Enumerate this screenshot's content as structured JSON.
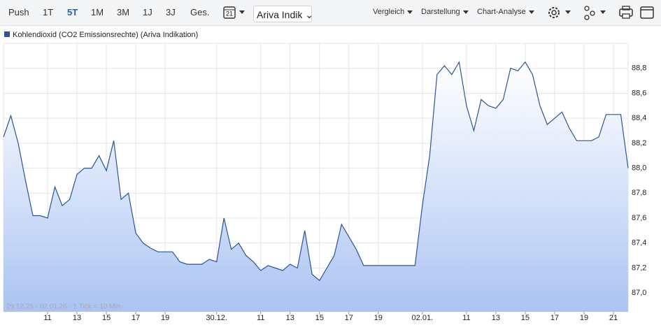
{
  "toolbar": {
    "periods": [
      "Push",
      "1T",
      "5T",
      "1M",
      "3M",
      "1J",
      "3J",
      "Ges."
    ],
    "selected_period": 2,
    "calendar_day": "21",
    "source_select": "Ariva Indik",
    "menus": [
      "Vergleich",
      "Darstellung",
      "Chart-Analyse"
    ]
  },
  "chart_data": {
    "type": "line",
    "series": [
      {
        "name": "Kohlendioxid (CO2 Emissionsrechte) (Ariva Indikation)",
        "color": "#2b5594",
        "values": [
          88.25,
          88.42,
          88.2,
          87.9,
          87.62,
          87.62,
          87.6,
          87.85,
          87.7,
          87.75,
          87.95,
          88.0,
          88.0,
          88.1,
          87.98,
          88.22,
          87.75,
          87.8,
          87.48,
          87.4,
          87.36,
          87.33,
          87.33,
          87.33,
          87.25,
          87.23,
          87.23,
          87.23,
          87.27,
          87.25,
          87.6,
          87.35,
          87.4,
          87.3,
          87.25,
          87.18,
          87.22,
          87.2,
          87.18,
          87.23,
          87.2,
          87.5,
          87.15,
          87.1,
          87.2,
          87.3,
          87.55,
          87.45,
          87.35,
          87.22,
          87.22,
          87.22,
          87.22,
          87.22,
          87.22,
          87.22,
          87.22,
          87.7,
          88.1,
          88.75,
          88.82,
          88.75,
          88.85,
          88.5,
          88.3,
          88.55,
          88.5,
          88.48,
          88.55,
          88.8,
          88.78,
          88.85,
          88.75,
          88.5,
          88.35,
          88.4,
          88.45,
          88.32,
          88.22,
          88.22,
          88.22,
          88.25,
          88.43,
          88.43,
          88.43,
          88.0
        ]
      }
    ],
    "categories": [
      null,
      null,
      null,
      null,
      null,
      null,
      "11",
      null,
      null,
      null,
      "13",
      null,
      null,
      null,
      "15",
      null,
      null,
      null,
      "17",
      null,
      null,
      null,
      "19",
      null,
      null,
      null,
      null,
      null,
      null,
      "30.12.",
      null,
      null,
      null,
      null,
      null,
      "11",
      null,
      null,
      null,
      "13",
      null,
      null,
      null,
      "15",
      null,
      null,
      null,
      "17",
      null,
      null,
      null,
      "19",
      null,
      null,
      null,
      null,
      null,
      "02.01.",
      null,
      null,
      null,
      null,
      null,
      "11",
      null,
      null,
      null,
      "13",
      null,
      null,
      null,
      "15",
      null,
      null,
      null,
      "17",
      null,
      null,
      null,
      "19",
      null,
      null,
      null,
      "21",
      null,
      null
    ],
    "ylim": [
      86.85,
      89.0
    ],
    "yticks": [
      {
        "value": 87.0,
        "label": "87,0"
      },
      {
        "value": 87.2,
        "label": "87,2"
      },
      {
        "value": 87.4,
        "label": "87,4"
      },
      {
        "value": 87.6,
        "label": "87,6"
      },
      {
        "value": 87.8,
        "label": "87,8"
      },
      {
        "value": 88.0,
        "label": "88,0"
      },
      {
        "value": 88.2,
        "label": "88,2"
      },
      {
        "value": 88.4,
        "label": "88,4"
      },
      {
        "value": 88.6,
        "label": "88,6"
      },
      {
        "value": 88.8,
        "label": "88,8"
      }
    ],
    "grid": true,
    "note": "29.12.25 - 02.01.26 · 1 Tick = 10 Min."
  }
}
